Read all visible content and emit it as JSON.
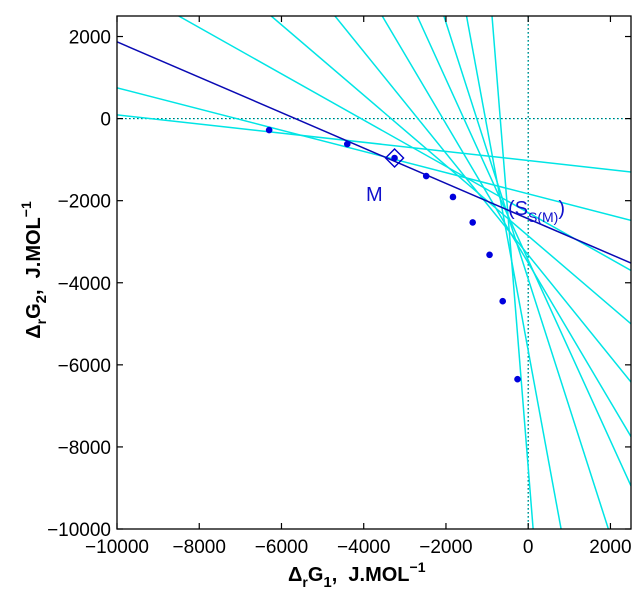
{
  "chart_data": {
    "type": "scatter",
    "xlim": [
      -10000,
      2500
    ],
    "ylim": [
      -10000,
      2500
    ],
    "x_ticks": [
      -10000,
      -8000,
      -6000,
      -4000,
      -2000,
      0,
      2000
    ],
    "y_ticks": [
      2000,
      0,
      -2000,
      -4000,
      -6000,
      -8000,
      -10000
    ],
    "x_tick_labels": [
      "−10000",
      "−8000",
      "−6000",
      "−4000",
      "−2000",
      "0",
      "2000"
    ],
    "y_tick_labels": [
      "2000",
      "0",
      "−2000",
      "−4000",
      "−6000",
      "−8000",
      "−10000"
    ],
    "xlabel": {
      "delta": "Δ",
      "sub": "r",
      "main": "G",
      "index": "1",
      "unit": ",  J.MOL",
      "exp": "−1"
    },
    "ylabel": {
      "delta": "Δ",
      "sub": "r",
      "main": "G",
      "index": "2",
      "unit": ",  J.MOL",
      "exp": "−1"
    },
    "points": [
      {
        "x": -6300,
        "y": -280
      },
      {
        "x": -4400,
        "y": -620
      },
      {
        "x": -3250,
        "y": -960
      },
      {
        "x": -2480,
        "y": -1400
      },
      {
        "x": -1830,
        "y": -1910
      },
      {
        "x": -1350,
        "y": -2530
      },
      {
        "x": -940,
        "y": -3320
      },
      {
        "x": -620,
        "y": -4450
      },
      {
        "x": -260,
        "y": -6350
      }
    ],
    "tangent_lines": [
      {
        "x1": -10000,
        "y1": 90,
        "x2": 2500,
        "y2": -1300
      },
      {
        "x1": -10000,
        "y1": 750,
        "x2": 2500,
        "y2": -2480
      },
      {
        "x1": -8500,
        "y1": 2500,
        "x2": 2500,
        "y2": -3700
      },
      {
        "x1": -6250,
        "y1": 2500,
        "x2": 2500,
        "y2": -5000
      },
      {
        "x1": -4700,
        "y1": 2500,
        "x2": 2500,
        "y2": -6420
      },
      {
        "x1": -3550,
        "y1": 2500,
        "x2": 2500,
        "y2": -7750
      },
      {
        "x1": -2700,
        "y1": 2500,
        "x2": 2500,
        "y2": -8950
      },
      {
        "x1": -2050,
        "y1": 2500,
        "x2": 1950,
        "y2": -10000
      },
      {
        "x1": -1500,
        "y1": 2500,
        "x2": 800,
        "y2": -10000
      },
      {
        "x1": -880,
        "y1": 2500,
        "x2": 120,
        "y2": -10000
      }
    ],
    "line_S": {
      "x1": -10000,
      "y1": 1870,
      "x2": 2500,
      "y2": -3520
    },
    "marker_M": {
      "x": -3250,
      "y": -960
    },
    "label_M": "M",
    "label_S": {
      "open": "(S",
      "sub": "S(M)",
      "close": ")"
    },
    "colors": {
      "points": "#0000dd",
      "tangents": "#00e5e5",
      "line_S": "#0a0ab4",
      "marker": "#0000cc",
      "axes": "#000000",
      "zero_lines": "#00cccc"
    }
  }
}
